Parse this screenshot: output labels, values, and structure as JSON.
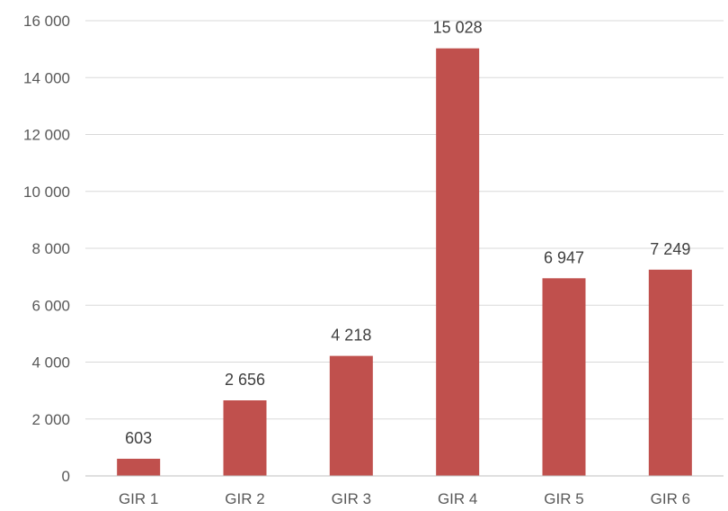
{
  "chart_data": {
    "type": "bar",
    "title": "",
    "xlabel": "",
    "ylabel": "",
    "categories": [
      "GIR 1",
      "GIR 2",
      "GIR 3",
      "GIR 4",
      "GIR 5",
      "GIR 6"
    ],
    "values": [
      603,
      2656,
      4218,
      15028,
      6947,
      7249
    ],
    "value_labels": [
      "603",
      "2 656",
      "4 218",
      "15 028",
      "6 947",
      "7 249"
    ],
    "ylim": [
      0,
      16000
    ],
    "yticks": [
      0,
      2000,
      4000,
      6000,
      8000,
      10000,
      12000,
      14000,
      16000
    ],
    "ytick_labels": [
      "0",
      "2 000",
      "4 000",
      "6 000",
      "8 000",
      "10 000",
      "12 000",
      "14 000",
      "16 000"
    ],
    "grid": true,
    "legend": "none",
    "bar_color": "#c0504d"
  }
}
